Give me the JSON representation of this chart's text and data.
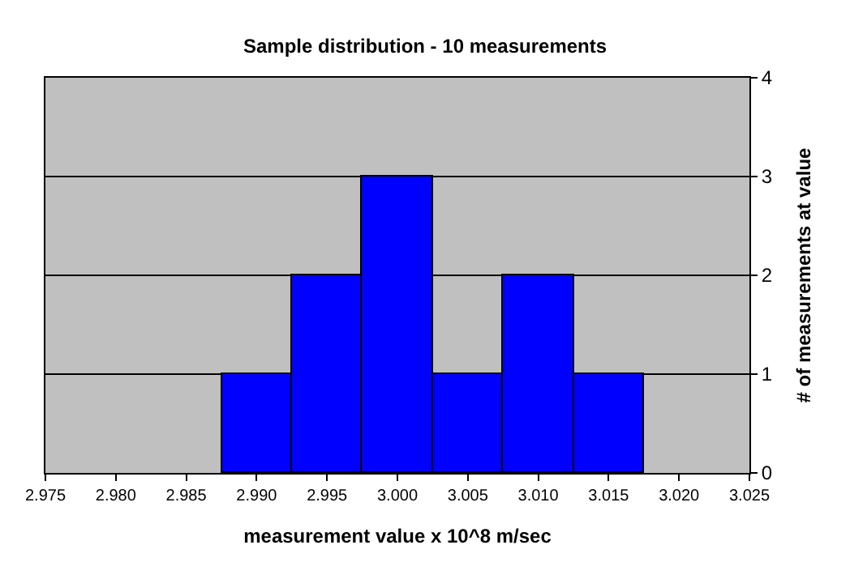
{
  "chart_data": {
    "type": "histogram",
    "title": "Sample distribution - 10 measurements",
    "xlabel": "measurement value x 10^8 m/sec",
    "ylabel": "# of measurements at value",
    "bins": [
      2.9875,
      2.9925,
      2.9975,
      3.0025,
      3.0075,
      3.0125,
      3.0175
    ],
    "values": [
      1,
      2,
      3,
      1,
      2,
      1
    ],
    "color": "#0000ff",
    "xlim": [
      2.975,
      3.025
    ],
    "xticks": [
      {
        "value": 2.975,
        "label": "2.975"
      },
      {
        "value": 2.98,
        "label": "2.980"
      },
      {
        "value": 2.985,
        "label": "2.985"
      },
      {
        "value": 2.99,
        "label": "2.990"
      },
      {
        "value": 2.995,
        "label": "2.995"
      },
      {
        "value": 3.0,
        "label": "3.000"
      },
      {
        "value": 3.005,
        "label": "3.005"
      },
      {
        "value": 3.01,
        "label": "3.010"
      },
      {
        "value": 3.015,
        "label": "3.015"
      },
      {
        "value": 3.02,
        "label": "3.020"
      },
      {
        "value": 3.025,
        "label": "3.025"
      }
    ],
    "ylim": [
      0,
      4
    ],
    "yticks": [
      0,
      1,
      2,
      3,
      4
    ],
    "grid": "y"
  }
}
